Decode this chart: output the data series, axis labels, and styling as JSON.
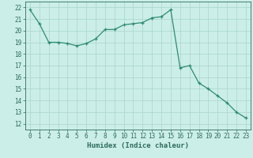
{
  "x": [
    0,
    1,
    2,
    3,
    4,
    5,
    6,
    7,
    8,
    9,
    10,
    11,
    12,
    13,
    14,
    15,
    16,
    17,
    18,
    19,
    20,
    21,
    22,
    23
  ],
  "y": [
    21.8,
    20.6,
    19.0,
    19.0,
    18.9,
    18.7,
    18.9,
    19.3,
    20.1,
    20.1,
    20.5,
    20.6,
    20.7,
    21.1,
    21.2,
    21.8,
    16.8,
    17.0,
    15.5,
    15.0,
    14.4,
    13.8,
    13.0,
    12.5
  ],
  "line_color": "#2e8b74",
  "marker": "+",
  "bg_color": "#cceee8",
  "grid_color": "#aed8d2",
  "xlabel": "Humidex (Indice chaleur)",
  "xlim": [
    -0.5,
    23.5
  ],
  "ylim": [
    11.5,
    22.5
  ],
  "yticks": [
    12,
    13,
    14,
    15,
    16,
    17,
    18,
    19,
    20,
    21,
    22
  ],
  "xticks": [
    0,
    1,
    2,
    3,
    4,
    5,
    6,
    7,
    8,
    9,
    10,
    11,
    12,
    13,
    14,
    15,
    16,
    17,
    18,
    19,
    20,
    21,
    22,
    23
  ],
  "tick_color": "#2e6b5e",
  "label_color": "#2e6b5e",
  "tick_fontsize": 5.5,
  "xlabel_fontsize": 6.5
}
